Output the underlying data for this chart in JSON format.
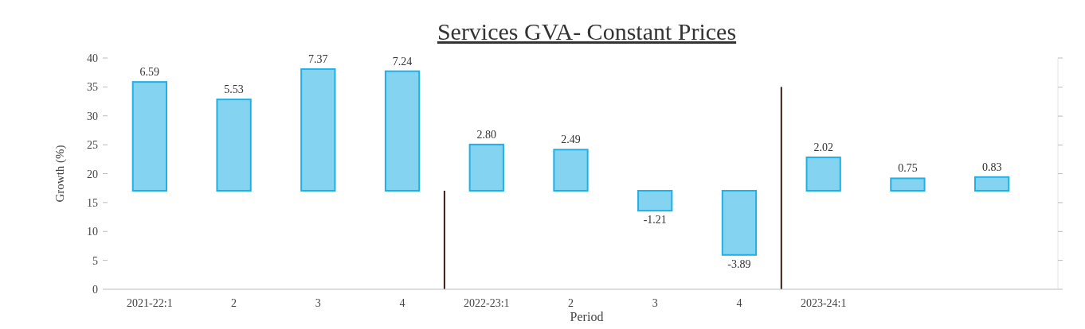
{
  "chart_data": {
    "type": "bar",
    "title": "Services  GVA- Constant Prices",
    "xlabel": "Period",
    "ylabel": "Growth (%)",
    "categories": [
      "2021-22:1",
      "2",
      "3",
      "4",
      "2022-23:1",
      "2",
      "3",
      "4",
      "2023-24:1",
      null,
      null
    ],
    "series": [
      {
        "values": [
          6.59,
          5.53,
          7.37,
          7.24,
          2.8,
          2.49,
          -1.21,
          -3.89,
          2.02,
          0.75,
          0.83
        ],
        "value_labels": [
          "6.59",
          "5.53",
          "7.37",
          "7.24",
          "2.80",
          "2.49",
          "-1.21",
          "-3.89",
          "2.02",
          "0.75",
          "0.83"
        ],
        "color": "#1fb0e6",
        "axis": "y2"
      }
    ],
    "ylim": [
      0,
      40
    ],
    "yticks": [
      0,
      5,
      10,
      15,
      20,
      25,
      30,
      35,
      40
    ],
    "y2lim": [
      -5.97,
      8.04
    ],
    "y2ticks": [
      {
        "value": -5.97,
        "label": null
      },
      {
        "value": -4.22,
        "label": null
      },
      {
        "value": -2.47,
        "label": null
      },
      {
        "value": -0.72,
        "label": null
      },
      {
        "value": 1.03,
        "label": null
      },
      {
        "value": 2.77,
        "label": null
      },
      {
        "value": 4.52,
        "label": null
      },
      {
        "value": 6.27,
        "label": null
      },
      {
        "value": 8.04,
        "label": null
      }
    ],
    "tick_labels": "xy"
  }
}
